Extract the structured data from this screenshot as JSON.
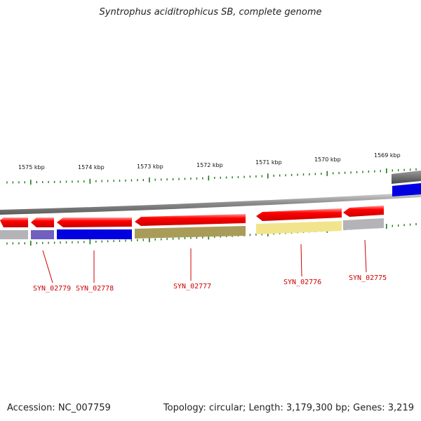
{
  "title": "Syntrophus aciditrophicus SB, complete genome",
  "accession": "Accession: NC_007759",
  "summary": "Topology: circular; Length: 3,179,300 bp; Genes: 3,219",
  "ruler": [
    "1575 kbp",
    "1574 kbp",
    "1573 kbp",
    "1572 kbp",
    "1571 kbp",
    "1570 kbp",
    "1569 kbp"
  ],
  "genes": [
    {
      "tag": "SYN_02779",
      "feature_color": "#7060c0"
    },
    {
      "tag": "SYN_02778",
      "feature_color": "#0000e0"
    },
    {
      "tag": "SYN_02777",
      "feature_color": "#a89c58"
    },
    {
      "tag": "SYN_02776",
      "feature_color": "#f2e48c"
    },
    {
      "tag": "SYN_02775",
      "feature_color": "#b4b4b8"
    }
  ],
  "colors": {
    "cds": "#ff0000",
    "backbone": "#888888",
    "tick": "#1a7a1a",
    "label": "#cc0000"
  }
}
